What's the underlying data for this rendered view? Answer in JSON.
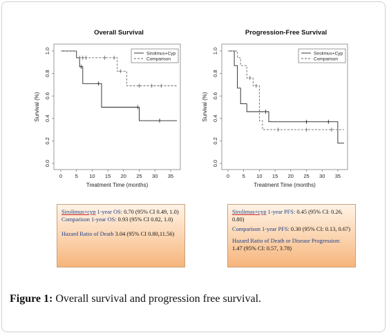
{
  "chart_data": [
    {
      "type": "line",
      "title": "Overall Survival",
      "xlabel": "Treatment Time (months)",
      "ylabel": "Survival (%)",
      "xlim": [
        0,
        37
      ],
      "ylim": [
        0,
        1
      ],
      "x_ticks": [
        "0",
        "5",
        "10",
        "15",
        "20",
        "25",
        "30",
        "35"
      ],
      "y_ticks": [
        "0.0",
        "0.2",
        "0.4",
        "0.6",
        "0.8",
        "1.0"
      ],
      "legend_position": "top-right",
      "series": [
        {
          "name": "Sirolimus+Cyp",
          "dash": false,
          "color": "#222222",
          "points": [
            [
              0,
              1.0
            ],
            [
              5,
              1.0
            ],
            [
              5,
              0.94
            ],
            [
              6,
              0.94
            ],
            [
              6,
              0.86
            ],
            [
              7,
              0.86
            ],
            [
              7,
              0.71
            ],
            [
              13,
              0.71
            ],
            [
              13,
              0.5
            ],
            [
              25,
              0.5
            ],
            [
              25,
              0.38
            ],
            [
              37,
              0.38
            ]
          ],
          "censor": [
            [
              6.5,
              0.86
            ],
            [
              12,
              0.71
            ],
            [
              24.5,
              0.5
            ],
            [
              31.5,
              0.38
            ]
          ]
        },
        {
          "name": "Comparison",
          "dash": true,
          "color": "#666666",
          "points": [
            [
              0,
              1.0
            ],
            [
              5,
              1.0
            ],
            [
              5,
              0.94
            ],
            [
              18,
              0.94
            ],
            [
              18,
              0.82
            ],
            [
              21,
              0.82
            ],
            [
              21,
              0.69
            ],
            [
              37,
              0.69
            ]
          ],
          "censor": [
            [
              6,
              0.94
            ],
            [
              7,
              0.94
            ],
            [
              8,
              0.94
            ],
            [
              14,
              0.94
            ],
            [
              17,
              0.94
            ],
            [
              19,
              0.82
            ],
            [
              25,
              0.69
            ],
            [
              29,
              0.69
            ],
            [
              32,
              0.69
            ]
          ]
        }
      ]
    },
    {
      "type": "line",
      "title": "Progression-Free Survival",
      "xlabel": "Treatment Time (months)",
      "ylabel": "Survival (%)",
      "xlim": [
        0,
        37
      ],
      "ylim": [
        0,
        1
      ],
      "x_ticks": [
        "0",
        "5",
        "10",
        "15",
        "20",
        "25",
        "30",
        "35"
      ],
      "y_ticks": [
        "0.0",
        "0.2",
        "0.4",
        "0.6",
        "0.8",
        "1.0"
      ],
      "legend_position": "top-right",
      "series": [
        {
          "name": "Sirolimus+Cyp",
          "dash": false,
          "color": "#222222",
          "points": [
            [
              0,
              1.0
            ],
            [
              2,
              1.0
            ],
            [
              2,
              0.87
            ],
            [
              3,
              0.87
            ],
            [
              3,
              0.67
            ],
            [
              4,
              0.67
            ],
            [
              4,
              0.53
            ],
            [
              6,
              0.53
            ],
            [
              6,
              0.46
            ],
            [
              13,
              0.46
            ],
            [
              13,
              0.37
            ],
            [
              35,
              0.37
            ],
            [
              35,
              0.18
            ],
            [
              37,
              0.18
            ]
          ],
          "censor": [
            [
              12,
              0.46
            ],
            [
              25,
              0.37
            ],
            [
              32,
              0.37
            ]
          ]
        },
        {
          "name": "Comparison",
          "dash": true,
          "color": "#666666",
          "points": [
            [
              0,
              1.0
            ],
            [
              3,
              1.0
            ],
            [
              3,
              0.94
            ],
            [
              4,
              0.94
            ],
            [
              4,
              0.87
            ],
            [
              6,
              0.87
            ],
            [
              6,
              0.76
            ],
            [
              8,
              0.76
            ],
            [
              8,
              0.69
            ],
            [
              10,
              0.69
            ],
            [
              10,
              0.38
            ],
            [
              11,
              0.38
            ],
            [
              11,
              0.3
            ],
            [
              37,
              0.3
            ]
          ],
          "censor": [
            [
              7,
              0.76
            ],
            [
              9,
              0.69
            ],
            [
              16,
              0.3
            ],
            [
              25,
              0.3
            ],
            [
              33,
              0.3
            ]
          ]
        }
      ]
    }
  ],
  "os_box": {
    "l1_label": "Sirolimus+cyp",
    "l1_text": " 1-year OS: ",
    "l1_val": "0.70 (95% CI 0.49, 1.0)",
    "l2_text": "Comparison 1-year OS: ",
    "l2_val": "0.93 (95% CI 0.82, 1.0)",
    "l3_text": "Hazard Ratio of Death ",
    "l3_val": "3.04 (95% CI 0.80,11.56)"
  },
  "pfs_box": {
    "l1_label": "Sirolimus+cyp",
    "l1_text": " 1-year PFS: ",
    "l1_val": "0.45 (95% CI: 0.26, 0.80)",
    "l2_text": "Comparison 1-year PFS: ",
    "l2_val": "0.30 (95% CI: 0.13, 0.67)",
    "l3_text": "Hazard Ratio of Death or Disease Progression: ",
    "l3_val": "1.47 (95% CI: 0.57, 3.78)"
  },
  "caption": {
    "label": "Figure 1:",
    "text": " Overall survival and progression free survival."
  }
}
